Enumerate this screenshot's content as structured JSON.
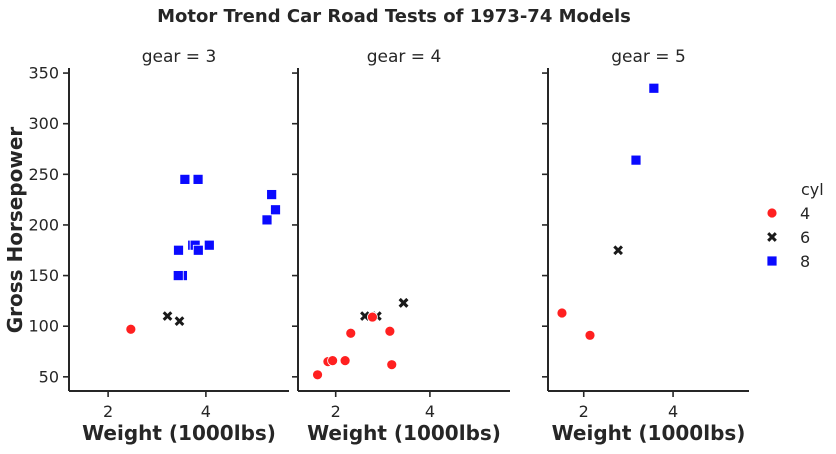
{
  "chart_data": {
    "type": "scatter",
    "title": "Motor Trend Car Road Tests of 1973-74 Models",
    "xlabel": "Weight (1000lbs)",
    "ylabel": "Gross Horsepower",
    "xlim": [
      1.2,
      5.7
    ],
    "ylim": [
      36,
      355
    ],
    "xticks": [
      2,
      4
    ],
    "yticks": [
      50,
      100,
      150,
      200,
      250,
      300,
      350
    ],
    "legend": {
      "title": "cyl",
      "position": "right",
      "entries": [
        {
          "label": "4",
          "marker": "circle",
          "color": "#ff2020"
        },
        {
          "label": "6",
          "marker": "x",
          "color": "#1a1a1a"
        },
        {
          "label": "8",
          "marker": "square",
          "color": "#0a0aff"
        }
      ]
    },
    "facets": [
      {
        "title": "gear = 3",
        "points": [
          {
            "wt": 2.465,
            "hp": 97,
            "cyl": 4
          },
          {
            "wt": 3.215,
            "hp": 110,
            "cyl": 6
          },
          {
            "wt": 3.46,
            "hp": 105,
            "cyl": 6
          },
          {
            "wt": 3.44,
            "hp": 175,
            "cyl": 8
          },
          {
            "wt": 3.57,
            "hp": 245,
            "cyl": 8
          },
          {
            "wt": 4.07,
            "hp": 180,
            "cyl": 8
          },
          {
            "wt": 3.73,
            "hp": 180,
            "cyl": 8
          },
          {
            "wt": 3.78,
            "hp": 180,
            "cyl": 8
          },
          {
            "wt": 5.25,
            "hp": 205,
            "cyl": 8
          },
          {
            "wt": 5.424,
            "hp": 215,
            "cyl": 8
          },
          {
            "wt": 5.345,
            "hp": 230,
            "cyl": 8
          },
          {
            "wt": 3.52,
            "hp": 150,
            "cyl": 8
          },
          {
            "wt": 3.435,
            "hp": 150,
            "cyl": 8
          },
          {
            "wt": 3.84,
            "hp": 245,
            "cyl": 8
          },
          {
            "wt": 3.845,
            "hp": 175,
            "cyl": 8
          }
        ]
      },
      {
        "title": "gear = 4",
        "points": [
          {
            "wt": 2.62,
            "hp": 110,
            "cyl": 6
          },
          {
            "wt": 2.875,
            "hp": 110,
            "cyl": 6
          },
          {
            "wt": 2.32,
            "hp": 93,
            "cyl": 4
          },
          {
            "wt": 3.19,
            "hp": 62,
            "cyl": 4
          },
          {
            "wt": 3.15,
            "hp": 95,
            "cyl": 4
          },
          {
            "wt": 3.44,
            "hp": 123,
            "cyl": 6
          },
          {
            "wt": 3.44,
            "hp": 123,
            "cyl": 6
          },
          {
            "wt": 2.2,
            "hp": 66,
            "cyl": 4
          },
          {
            "wt": 1.615,
            "hp": 52,
            "cyl": 4
          },
          {
            "wt": 1.835,
            "hp": 65,
            "cyl": 4
          },
          {
            "wt": 1.935,
            "hp": 66,
            "cyl": 4
          },
          {
            "wt": 2.78,
            "hp": 109,
            "cyl": 4
          }
        ]
      },
      {
        "title": "gear = 5",
        "points": [
          {
            "wt": 2.14,
            "hp": 91,
            "cyl": 4
          },
          {
            "wt": 1.513,
            "hp": 113,
            "cyl": 4
          },
          {
            "wt": 3.17,
            "hp": 264,
            "cyl": 8
          },
          {
            "wt": 2.77,
            "hp": 175,
            "cyl": 6
          },
          {
            "wt": 3.57,
            "hp": 335,
            "cyl": 8
          }
        ]
      }
    ]
  }
}
